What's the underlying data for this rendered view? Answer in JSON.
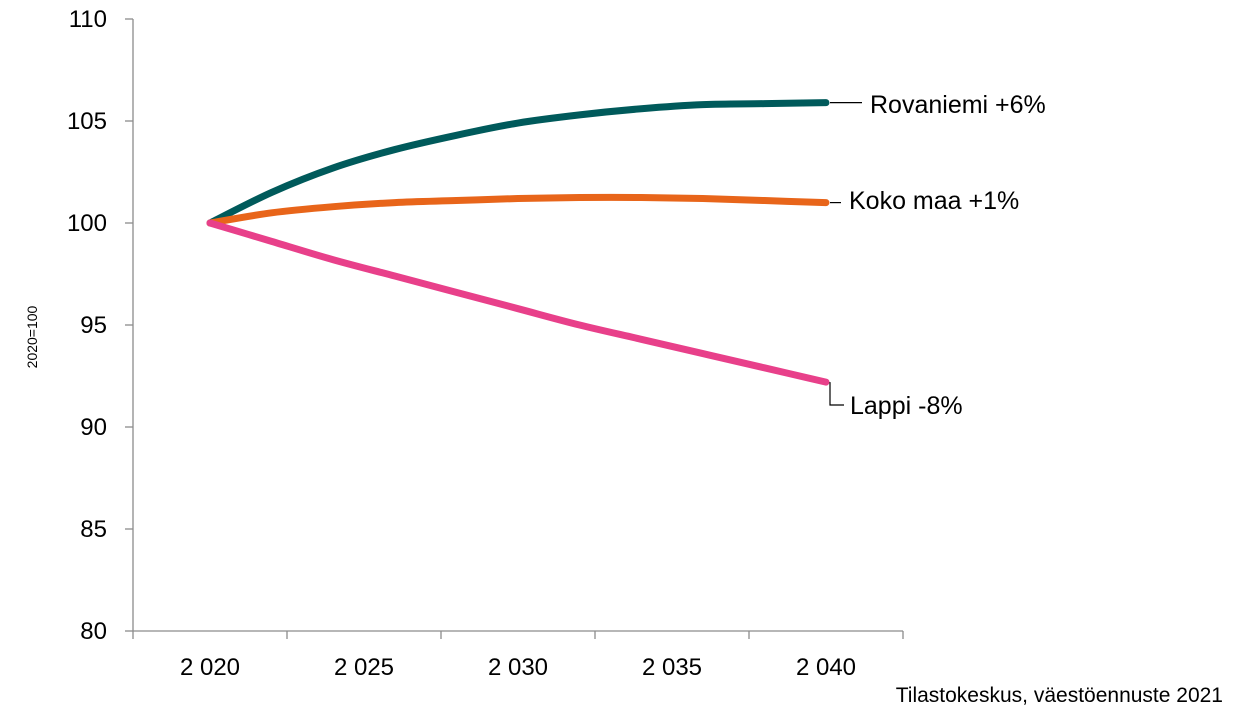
{
  "chart_data": {
    "type": "line",
    "ylabel": "2020=100",
    "xlabel": "",
    "source": "Tilastokeskus, väestöennuste 2021",
    "ylim": [
      80,
      110
    ],
    "yticks": [
      80,
      85,
      90,
      95,
      100,
      105,
      110
    ],
    "xlim": [
      2017.5,
      2042.5
    ],
    "xtick_boundaries": [
      2017.5,
      2022.5,
      2027.5,
      2032.5,
      2037.5,
      2042.5
    ],
    "xtick_labels": [
      {
        "x": 2020,
        "label": "2 020"
      },
      {
        "x": 2025,
        "label": "2 025"
      },
      {
        "x": 2030,
        "label": "2 030"
      },
      {
        "x": 2035,
        "label": "2 035"
      },
      {
        "x": 2040,
        "label": "2 040"
      }
    ],
    "grid": false,
    "series": [
      {
        "name": "Rovaniemi",
        "label": "Rovaniemi +6%",
        "color": "#005a5b",
        "x": [
          2020,
          2022,
          2024,
          2026,
          2028,
          2030,
          2032,
          2034,
          2036,
          2038,
          2040
        ],
        "values": [
          100.0,
          101.5,
          102.7,
          103.6,
          104.3,
          104.9,
          105.3,
          105.6,
          105.8,
          105.85,
          105.9
        ]
      },
      {
        "name": "Koko maa",
        "label": "Koko maa +1%",
        "color": "#e8651a",
        "x": [
          2020,
          2022,
          2024,
          2026,
          2028,
          2030,
          2032,
          2034,
          2036,
          2038,
          2040
        ],
        "values": [
          100.0,
          100.5,
          100.8,
          101.0,
          101.1,
          101.2,
          101.25,
          101.25,
          101.2,
          101.1,
          101.0
        ]
      },
      {
        "name": "Lappi",
        "label": "Lappi -8%",
        "color": "#e8408a",
        "x": [
          2020,
          2022,
          2024,
          2026,
          2028,
          2030,
          2032,
          2034,
          2036,
          2038,
          2040
        ],
        "values": [
          100.0,
          99.1,
          98.2,
          97.4,
          96.6,
          95.8,
          95.0,
          94.3,
          93.6,
          92.9,
          92.2
        ]
      }
    ]
  }
}
